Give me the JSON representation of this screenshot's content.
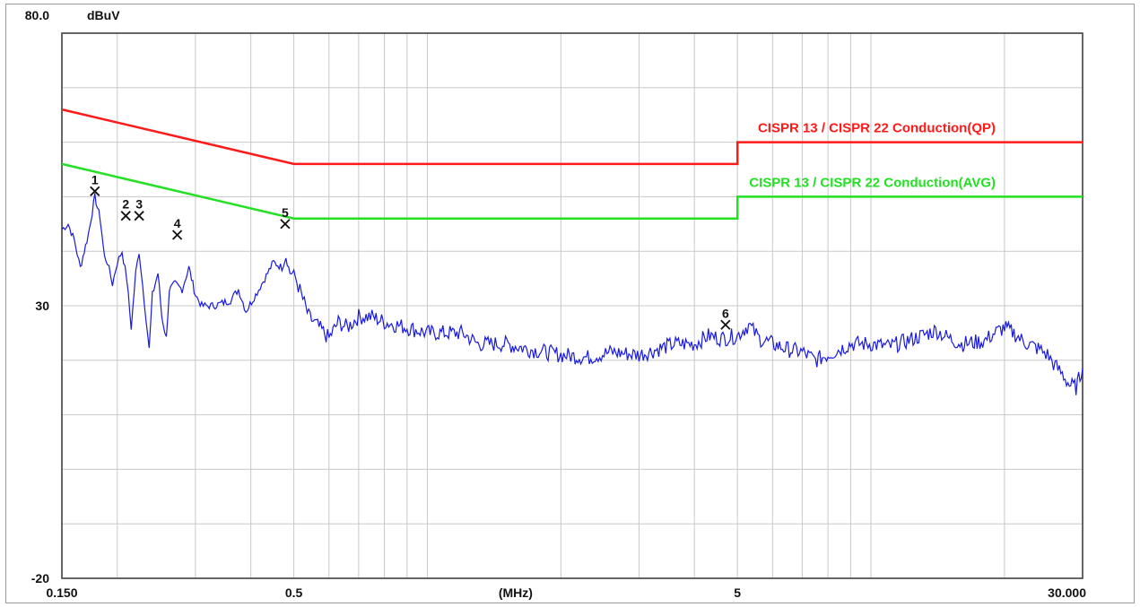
{
  "chart_data": {
    "type": "line",
    "x_scale": "log",
    "x_unit": "MHz",
    "xlim": [
      0.15,
      30.0
    ],
    "ylim": [
      -20,
      80
    ],
    "yunit": "dBuV",
    "grid": true,
    "y_tick_labels": [
      {
        "value": 80,
        "label": "80.0"
      },
      {
        "value": 30,
        "label": "30"
      },
      {
        "value": -20,
        "label": "-20"
      }
    ],
    "x_tick_labels": [
      {
        "value": 0.15,
        "label": "0.150"
      },
      {
        "value": 0.5,
        "label": "0.5"
      },
      {
        "value": 5,
        "label": "5"
      },
      {
        "value": 30,
        "label": "30.000"
      }
    ],
    "x_axis_label": "(MHz)",
    "y_axis_unit_label": "dBuV",
    "limits": [
      {
        "name": "CISPR 13 / CISPR 22 Conduction(QP)",
        "color": "#ff1a1a",
        "points": [
          [
            0.15,
            66
          ],
          [
            0.5,
            56
          ],
          [
            5,
            56
          ],
          [
            5,
            60
          ],
          [
            30,
            60
          ]
        ]
      },
      {
        "name": "CISPR 13 / CISPR 22 Conduction(AVG)",
        "color": "#22e022",
        "points": [
          [
            0.15,
            56
          ],
          [
            0.5,
            46
          ],
          [
            5,
            46
          ],
          [
            5,
            50
          ],
          [
            30,
            50
          ]
        ]
      }
    ],
    "series": [
      {
        "color": "#1a1adb",
        "points": [
          [
            0.15,
            44
          ],
          [
            0.155,
            45
          ],
          [
            0.16,
            42
          ],
          [
            0.165,
            37
          ],
          [
            0.172,
            43
          ],
          [
            0.178,
            50
          ],
          [
            0.183,
            46
          ],
          [
            0.187,
            39
          ],
          [
            0.19,
            38
          ],
          [
            0.195,
            34
          ],
          [
            0.2,
            38
          ],
          [
            0.205,
            40
          ],
          [
            0.21,
            35
          ],
          [
            0.215,
            26
          ],
          [
            0.22,
            36
          ],
          [
            0.224,
            40
          ],
          [
            0.228,
            34
          ],
          [
            0.232,
            28
          ],
          [
            0.236,
            22
          ],
          [
            0.24,
            32
          ],
          [
            0.247,
            36
          ],
          [
            0.252,
            28
          ],
          [
            0.258,
            24
          ],
          [
            0.262,
            33
          ],
          [
            0.27,
            34
          ],
          [
            0.28,
            33
          ],
          [
            0.29,
            37
          ],
          [
            0.3,
            32
          ],
          [
            0.31,
            30
          ],
          [
            0.33,
            30
          ],
          [
            0.36,
            31
          ],
          [
            0.375,
            33
          ],
          [
            0.39,
            29
          ],
          [
            0.41,
            32
          ],
          [
            0.43,
            35
          ],
          [
            0.45,
            38
          ],
          [
            0.47,
            37
          ],
          [
            0.48,
            39
          ],
          [
            0.49,
            36
          ],
          [
            0.5,
            36
          ],
          [
            0.52,
            32
          ],
          [
            0.54,
            28
          ],
          [
            0.57,
            26
          ],
          [
            0.6,
            24
          ],
          [
            0.63,
            27
          ],
          [
            0.66,
            26
          ],
          [
            0.7,
            28
          ],
          [
            0.75,
            28
          ],
          [
            0.8,
            27
          ],
          [
            0.9,
            26
          ],
          [
            1.0,
            25
          ],
          [
            1.1,
            25
          ],
          [
            1.2,
            25
          ],
          [
            1.3,
            23
          ],
          [
            1.5,
            23
          ],
          [
            1.7,
            22
          ],
          [
            2.0,
            21
          ],
          [
            2.3,
            20.5
          ],
          [
            2.6,
            21.5
          ],
          [
            3.0,
            21
          ],
          [
            3.3,
            22
          ],
          [
            3.6,
            23
          ],
          [
            4.0,
            23
          ],
          [
            4.3,
            24.5
          ],
          [
            4.6,
            24
          ],
          [
            5.0,
            24.5
          ],
          [
            5.3,
            26.5
          ],
          [
            5.6,
            24
          ],
          [
            6.0,
            23
          ],
          [
            6.5,
            22
          ],
          [
            7.0,
            21.5
          ],
          [
            7.5,
            20
          ],
          [
            8.0,
            21
          ],
          [
            8.5,
            22
          ],
          [
            9.0,
            23
          ],
          [
            10,
            23
          ],
          [
            11,
            22.5
          ],
          [
            12,
            23.5
          ],
          [
            13,
            24.5
          ],
          [
            14,
            25.5
          ],
          [
            15,
            24
          ],
          [
            16,
            23
          ],
          [
            18,
            23.5
          ],
          [
            19,
            25
          ],
          [
            20,
            26
          ],
          [
            21,
            25
          ],
          [
            22,
            23.5
          ],
          [
            24,
            22
          ],
          [
            25,
            21
          ],
          [
            26,
            19
          ],
          [
            27,
            17.5
          ],
          [
            28,
            15.5
          ],
          [
            29,
            15
          ],
          [
            30,
            18.5
          ]
        ]
      }
    ],
    "markers": [
      {
        "label": "1",
        "freq": 0.178,
        "level": 51.0
      },
      {
        "label": "2",
        "freq": 0.209,
        "level": 46.5
      },
      {
        "label": "3",
        "freq": 0.224,
        "level": 46.5
      },
      {
        "label": "4",
        "freq": 0.273,
        "level": 43.0
      },
      {
        "label": "5",
        "freq": 0.478,
        "level": 45.0
      },
      {
        "label": "6",
        "freq": 4.7,
        "level": 26.5
      }
    ]
  }
}
